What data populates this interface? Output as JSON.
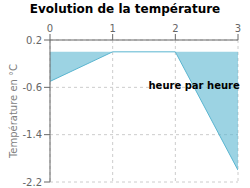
{
  "chart_data": {
    "type": "area",
    "title": "Evolution de la température",
    "ylabel": "Température en °C",
    "x": [
      0,
      1,
      2,
      3
    ],
    "values": [
      -0.5,
      0.0,
      0.0,
      -2.0
    ],
    "color": "#5ab5d0",
    "xlim": [
      0,
      3
    ],
    "xticks": [
      0,
      1,
      2,
      3
    ],
    "ylim": [
      -2.2,
      0.2
    ],
    "yticks": [
      0.2,
      -0.6,
      -1.4,
      -2.2
    ],
    "grid": true,
    "annotations": [
      {
        "text": "heure par heure",
        "x": 2.3,
        "y": -0.42
      }
    ]
  }
}
